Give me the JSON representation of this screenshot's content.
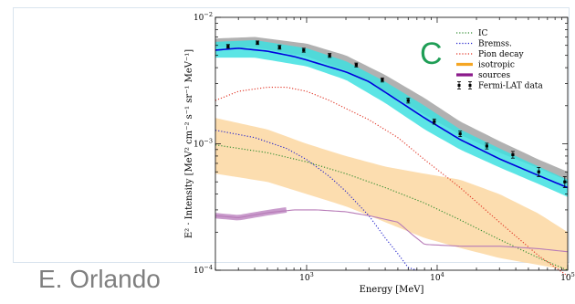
{
  "author": "E. Orlando",
  "chart_data": {
    "type": "line",
    "panel_label": "C",
    "xlabel": "Energy [MeV]",
    "ylabel": "E² · Intensity [MeV² cm⁻² s⁻¹ sr⁻¹ MeV⁻¹]",
    "xscale": "log",
    "yscale": "log",
    "xlim": [
      200,
      100000
    ],
    "ylim": [
      0.0001,
      0.01
    ],
    "x_ticks": [
      {
        "value": 1000,
        "label_base": "10",
        "label_exp": "3"
      },
      {
        "value": 10000,
        "label_base": "10",
        "label_exp": "4"
      },
      {
        "value": 100000,
        "label_base": "10",
        "label_exp": "5"
      }
    ],
    "y_ticks": [
      {
        "value": 0.0001,
        "label_base": "10",
        "label_exp": "−4"
      },
      {
        "value": 0.001,
        "label_base": "10",
        "label_exp": "−3"
      },
      {
        "value": 0.01,
        "label_base": "10",
        "label_exp": "−2"
      }
    ],
    "legend_position": "top-right",
    "legend": [
      {
        "label": "IC",
        "style": "dotted",
        "color": "#2e8b2e"
      },
      {
        "label": "Bremss.",
        "style": "dotted",
        "color": "#2222cc"
      },
      {
        "label": "Pion decay",
        "style": "dotted",
        "color": "#e03020"
      },
      {
        "label": "isotropic",
        "style": "thick",
        "color": "#f5a623"
      },
      {
        "label": "sources",
        "style": "thick",
        "color": "#8b1a8b"
      },
      {
        "label": "Fermi-LAT data",
        "style": "errorbar",
        "color": "#000000"
      }
    ],
    "bands": [
      {
        "name": "gray",
        "color": "#a9a9a9",
        "x": [
          200,
          400,
          1000,
          2000,
          4000,
          8000,
          15000,
          30000,
          60000,
          100000
        ],
        "lower": [
          0.0058,
          0.0058,
          0.0049,
          0.0038,
          0.0026,
          0.0017,
          0.00118,
          0.00085,
          0.00064,
          0.00051
        ],
        "upper": [
          0.0068,
          0.007,
          0.0062,
          0.005,
          0.0035,
          0.0023,
          0.0015,
          0.00105,
          0.00075,
          0.0006
        ]
      },
      {
        "name": "cyan",
        "color": "#40e0e0",
        "x": [
          200,
          400,
          1000,
          2000,
          4000,
          8000,
          15000,
          30000,
          60000,
          100000
        ],
        "lower": [
          0.0048,
          0.0048,
          0.0041,
          0.0032,
          0.0021,
          0.0013,
          0.0009,
          0.00065,
          0.00048,
          0.00038
        ],
        "upper": [
          0.0064,
          0.0066,
          0.0057,
          0.0045,
          0.0031,
          0.002,
          0.0013,
          0.00092,
          0.00066,
          0.00052
        ]
      },
      {
        "name": "isotropic",
        "color": "#fcd9a6",
        "x": [
          200,
          500,
          1000,
          2000,
          4000,
          8000,
          15000,
          30000,
          60000,
          100000
        ],
        "lower": [
          0.00058,
          0.0005,
          0.0004,
          0.00032,
          0.00024,
          0.00018,
          0.00015,
          0.000125,
          0.00011,
          0.0001
        ],
        "upper": [
          0.0016,
          0.0013,
          0.001,
          0.0008,
          0.00066,
          0.00058,
          0.00052,
          0.0004,
          0.00028,
          0.0002
        ]
      }
    ],
    "series": [
      {
        "name": "IC",
        "style": "dotted",
        "color": "#2e8b2e",
        "x": [
          200,
          500,
          1000,
          2000,
          4000,
          8000,
          15000,
          30000,
          60000,
          100000
        ],
        "y": [
          0.00098,
          0.00085,
          0.00072,
          0.00058,
          0.00045,
          0.00034,
          0.00025,
          0.000175,
          0.000125,
          0.0001
        ]
      },
      {
        "name": "Bremss.",
        "style": "dotted",
        "color": "#2222cc",
        "x": [
          200,
          400,
          700,
          1000,
          1500,
          2000,
          3000,
          4000,
          5000,
          6000,
          7000
        ],
        "y": [
          0.00128,
          0.00112,
          0.00092,
          0.00075,
          0.00055,
          0.00042,
          0.00027,
          0.00018,
          0.000135,
          0.000105,
          0.0001
        ]
      },
      {
        "name": "Pion decay",
        "style": "dotted",
        "color": "#e03020",
        "x": [
          200,
          300,
          500,
          700,
          1000,
          1500,
          2000,
          3000,
          5000,
          8000,
          15000,
          30000,
          60000,
          100000
        ],
        "y": [
          0.0022,
          0.0026,
          0.0028,
          0.0028,
          0.0026,
          0.0022,
          0.0019,
          0.00155,
          0.00112,
          0.00075,
          0.00045,
          0.00024,
          0.00013,
          9e-05
        ]
      },
      {
        "name": "sources",
        "style": "line",
        "color": "#b77bb7",
        "x": [
          200,
          300,
          500,
          800,
          1200,
          2000,
          3000,
          5000,
          6500,
          8000,
          15000,
          30000,
          60000,
          100000
        ],
        "y": [
          0.00027,
          0.00026,
          0.000285,
          0.0003,
          0.0003,
          0.00029,
          0.00027,
          0.00024,
          0.00019,
          0.00016,
          0.000155,
          0.000155,
          0.000148,
          0.00014
        ]
      },
      {
        "name": "total model",
        "style": "solid",
        "color": "#0000dd",
        "x": [
          200,
          300,
          500,
          800,
          1000,
          2000,
          3000,
          5000,
          8000,
          15000,
          30000,
          60000,
          100000
        ],
        "y": [
          0.0055,
          0.0057,
          0.0054,
          0.0049,
          0.0046,
          0.0037,
          0.0031,
          0.0022,
          0.0016,
          0.00108,
          0.00076,
          0.00056,
          0.00045
        ]
      }
    ],
    "data_points": {
      "name": "Fermi-LAT data",
      "x": [
        250,
        420,
        620,
        950,
        1500,
        2400,
        3800,
        6000,
        9500,
        15000,
        24000,
        38000,
        60000,
        95000
      ],
      "y": [
        0.0059,
        0.0063,
        0.0058,
        0.0055,
        0.005,
        0.0042,
        0.0032,
        0.0022,
        0.0015,
        0.0012,
        0.00096,
        0.00082,
        0.0006,
        0.0005
      ],
      "err": [
        0.0002,
        0.0002,
        0.0002,
        0.0002,
        0.00018,
        0.00015,
        0.00012,
        0.0001,
        7e-05,
        6e-05,
        5e-05,
        5e-05,
        5e-05,
        5e-05
      ]
    }
  }
}
